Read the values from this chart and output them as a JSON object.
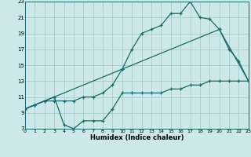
{
  "xlabel": "Humidex (Indice chaleur)",
  "bg_color": "#cce8e8",
  "grid_color": "#aacccc",
  "line_color": "#1a6b6b",
  "xlim": [
    0,
    23
  ],
  "ylim": [
    7,
    23
  ],
  "xticks": [
    0,
    1,
    2,
    3,
    4,
    5,
    6,
    7,
    8,
    9,
    10,
    11,
    12,
    13,
    14,
    15,
    16,
    17,
    18,
    19,
    20,
    21,
    22,
    23
  ],
  "yticks": [
    7,
    9,
    11,
    13,
    15,
    17,
    19,
    21,
    23
  ],
  "line1_x": [
    0,
    1,
    2,
    3,
    4,
    5,
    6,
    7,
    8,
    9,
    10,
    11,
    12,
    13,
    14,
    15,
    16,
    17,
    18,
    19,
    20,
    21,
    22,
    23
  ],
  "line1_y": [
    9.5,
    10.0,
    10.5,
    10.5,
    10.5,
    10.5,
    11.0,
    11.0,
    11.5,
    12.5,
    14.5,
    17.0,
    19.0,
    19.5,
    20.0,
    21.5,
    21.5,
    23.0,
    21.0,
    20.8,
    19.5,
    17.0,
    15.5,
    13.0
  ],
  "line2_x": [
    0,
    1,
    2,
    3,
    4,
    5,
    6,
    7,
    8,
    9,
    10,
    11,
    12,
    13,
    14,
    15,
    16,
    17,
    18,
    19,
    20,
    21,
    22,
    23
  ],
  "line2_y": [
    9.5,
    10.0,
    10.5,
    11.0,
    7.5,
    7.0,
    8.0,
    8.0,
    8.0,
    9.5,
    11.5,
    11.5,
    11.5,
    11.5,
    11.5,
    12.0,
    12.0,
    12.5,
    12.5,
    13.0,
    13.0,
    13.0,
    13.0,
    13.0
  ],
  "line3_x": [
    0,
    3,
    10,
    20,
    23
  ],
  "line3_y": [
    9.5,
    11.0,
    14.5,
    19.5,
    13.0
  ]
}
